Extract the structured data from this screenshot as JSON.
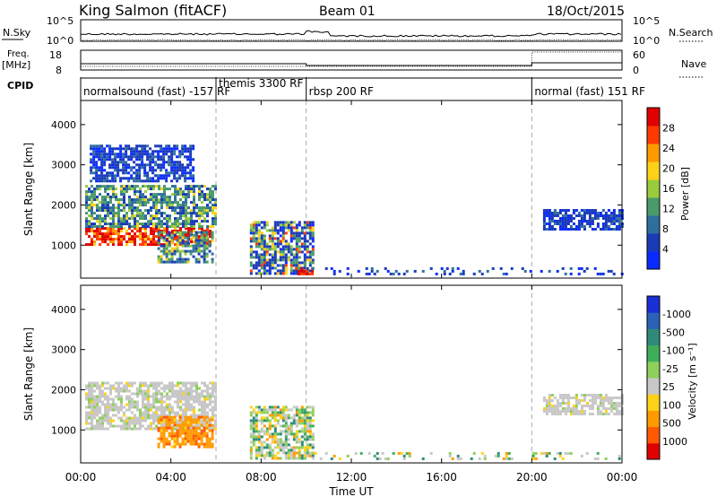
{
  "header": {
    "title": "King Salmon (fitACF)",
    "beam": "Beam 01",
    "date": "18/Oct/2015"
  },
  "top_panels": {
    "nsky_label": "N.Sky",
    "nsky_ticks": [
      "10^5",
      "10^0"
    ],
    "nsearch_label": "N.Search",
    "nsearch_ticks": [
      "10^5",
      "10^0"
    ],
    "freq_label_1": "Freq.",
    "freq_label_2": "[MHz]",
    "freq_ticks": [
      "18",
      "8"
    ],
    "nave_label": "Nave",
    "nave_ticks": [
      "60",
      "0"
    ],
    "cpid_label": "CPID",
    "cpid_segments": [
      {
        "label": "normalsound (fast) -157 RF",
        "start": 0.0
      },
      {
        "label": "themis 3300 RF",
        "start": 6.0
      },
      {
        "label": "rbsp 200 RF",
        "start": 10.0
      },
      {
        "label": "normal (fast) 151 RF",
        "start": 20.0
      }
    ]
  },
  "power_panel": {
    "ylabel": "Slant Range [km]",
    "yticks": [
      "1000",
      "2000",
      "3000",
      "4000"
    ],
    "colorbar_label": "Power [dB]",
    "colorbar_ticks": [
      "4",
      "8",
      "12",
      "16",
      "20",
      "24",
      "28"
    ],
    "colors": [
      "#0a2bff",
      "#1a3ab8",
      "#2f6f9e",
      "#4a9a6a",
      "#9bcb3c",
      "#ffd21a",
      "#ff9a00",
      "#ff3a00",
      "#e00000"
    ]
  },
  "velocity_panel": {
    "ylabel": "Slant Range [km]",
    "yticks": [
      "1000",
      "2000",
      "3000",
      "4000"
    ],
    "colorbar_label": "Velocity [m s⁻¹]",
    "colorbar_ticks": [
      "1000",
      "500",
      "100",
      "25",
      "-25",
      "-100",
      "-500",
      "-1000"
    ],
    "colors": [
      "#1a2fd6",
      "#2a62b8",
      "#2f8a7a",
      "#3fae5a",
      "#8fd05a",
      "#c8c8c8",
      "#ffd21a",
      "#ff9a00",
      "#ff5a00",
      "#e00000"
    ]
  },
  "x_axis": {
    "label": "Time UT",
    "ticks": [
      "00:00",
      "04:00",
      "08:00",
      "12:00",
      "16:00",
      "20:00",
      "00:00"
    ]
  },
  "chart_data": {
    "type": "heatmap",
    "x_range_hours": [
      0,
      24
    ],
    "y_range_km": [
      180,
      4600
    ],
    "mode_boundaries_hours": [
      6.0,
      10.0,
      20.0
    ],
    "power_features": [
      {
        "t0": 0.2,
        "t1": 5.8,
        "r0": 1000,
        "r1": 1450,
        "level": "high"
      },
      {
        "t0": 0.2,
        "t1": 6.0,
        "r0": 1450,
        "r1": 2500,
        "level": "medium"
      },
      {
        "t0": 3.4,
        "t1": 5.8,
        "r0": 600,
        "r1": 1350,
        "level": "medium"
      },
      {
        "t0": 0.4,
        "t1": 5.0,
        "r0": 2600,
        "r1": 3500,
        "level": "low"
      },
      {
        "t0": 7.5,
        "t1": 10.3,
        "r0": 300,
        "r1": 1600,
        "level": "mixed"
      },
      {
        "t0": 9.5,
        "t1": 10.3,
        "r0": 300,
        "r1": 450,
        "level": "high"
      },
      {
        "t0": 10.0,
        "t1": 24.0,
        "r0": 250,
        "r1": 450,
        "level": "low"
      },
      {
        "t0": 20.5,
        "t1": 24.0,
        "r0": 1400,
        "r1": 1900,
        "level": "low"
      }
    ],
    "velocity_features": [
      {
        "t0": 0.2,
        "t1": 6.0,
        "r0": 1000,
        "r1": 2200,
        "level": "near-zero"
      },
      {
        "t0": 3.4,
        "t1": 5.8,
        "r0": 600,
        "r1": 1350,
        "level": "away"
      },
      {
        "t0": 7.5,
        "t1": 10.3,
        "r0": 300,
        "r1": 1600,
        "level": "mixed"
      },
      {
        "t0": 10.0,
        "t1": 24.0,
        "r0": 250,
        "r1": 450,
        "level": "mixed"
      },
      {
        "t0": 20.5,
        "t1": 24.0,
        "r0": 1400,
        "r1": 1900,
        "level": "near-zero"
      }
    ]
  }
}
